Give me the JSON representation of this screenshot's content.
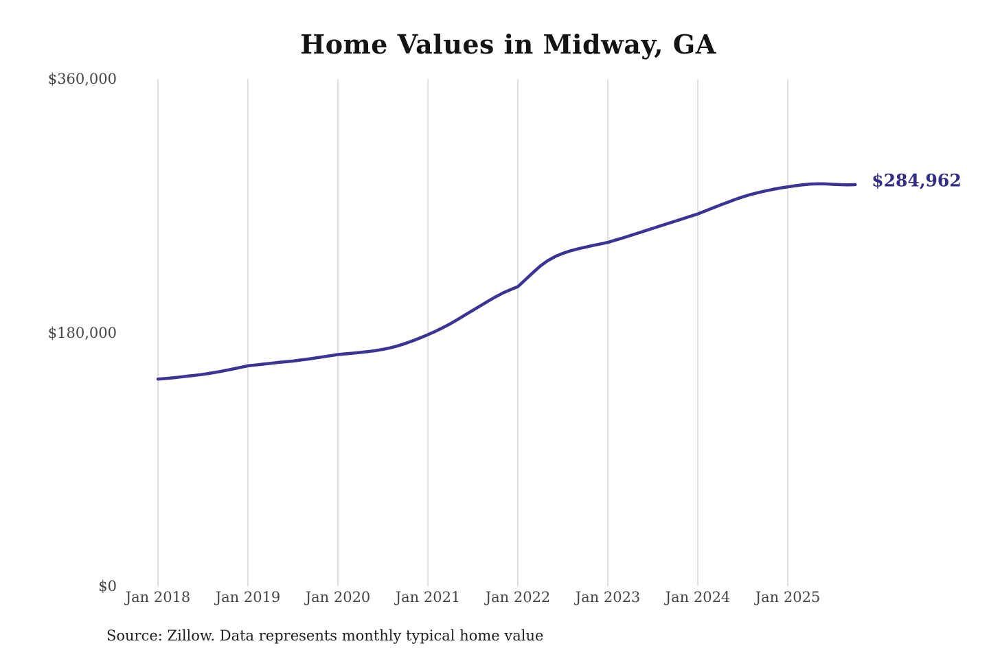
{
  "title": "Home Values in Midway, GA",
  "source_note": "Source: Zillow. Data represents monthly typical home value",
  "chart_data": {
    "type": "line",
    "title": "Home Values in Midway, GA",
    "unit": "USD",
    "x_start": "Jan 2018",
    "x_end": "Oct 2025",
    "x_interval": "1 month",
    "n_points": 94,
    "values": [
      147000,
      147400,
      147900,
      148500,
      149100,
      149700,
      150400,
      151200,
      152100,
      153100,
      154200,
      155300,
      156400,
      157000,
      157600,
      158200,
      158800,
      159300,
      159800,
      160500,
      161200,
      162000,
      162800,
      163600,
      164400,
      164900,
      165400,
      165900,
      166500,
      167200,
      168100,
      169200,
      170600,
      172300,
      174200,
      176300,
      178500,
      180900,
      183500,
      186300,
      189400,
      192600,
      195800,
      199000,
      202200,
      205300,
      208100,
      210400,
      212600,
      217500,
      222500,
      227300,
      231100,
      234000,
      236200,
      238000,
      239400,
      240600,
      241800,
      242900,
      244000,
      245600,
      247200,
      248900,
      250600,
      252300,
      254000,
      255700,
      257400,
      259100,
      260800,
      262500,
      264200,
      266300,
      268400,
      270500,
      272500,
      274500,
      276300,
      277900,
      279300,
      280500,
      281600,
      282600,
      283400,
      284200,
      284900,
      285400,
      285600,
      285500,
      285200,
      285000,
      284900,
      284962
    ],
    "final_value": 284962,
    "end_label": "$284,962",
    "x_ticks": [
      {
        "label": "Jan 2018",
        "month_index": 0
      },
      {
        "label": "Jan 2019",
        "month_index": 12
      },
      {
        "label": "Jan 2020",
        "month_index": 24
      },
      {
        "label": "Jan 2021",
        "month_index": 36
      },
      {
        "label": "Jan 2022",
        "month_index": 48
      },
      {
        "label": "Jan 2023",
        "month_index": 60
      },
      {
        "label": "Jan 2024",
        "month_index": 72
      },
      {
        "label": "Jan 2025",
        "month_index": 84
      }
    ],
    "y_ticks": [
      {
        "label": "$0",
        "value": 0
      },
      {
        "label": "$180,000",
        "value": 180000
      },
      {
        "label": "$360,000",
        "value": 360000
      }
    ],
    "ylim": [
      0,
      360000
    ],
    "grid": "vertical-only",
    "legend": "none",
    "line_color": "#3c3494",
    "end_label_color": "#332e85",
    "grid_color": "#cccccc",
    "axis_label_color": "#454545",
    "title_color": "#141414",
    "background_color": "#ffffff"
  }
}
